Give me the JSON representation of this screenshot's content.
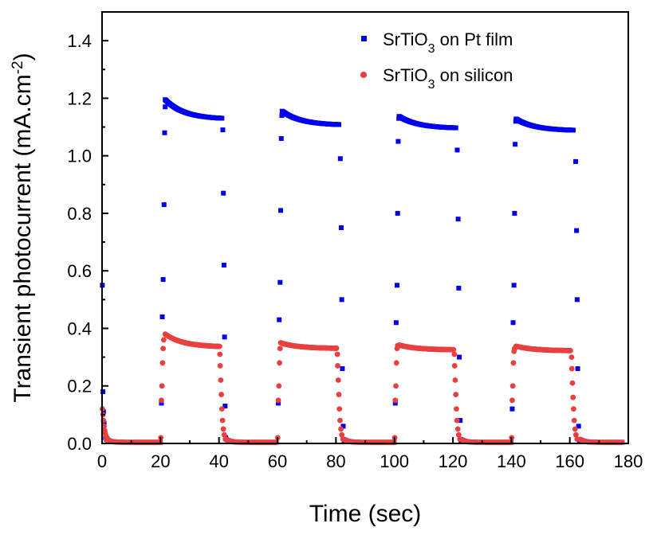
{
  "chart_data": {
    "type": "scatter",
    "xlabel": "Time (sec)",
    "ylabel": {
      "main": "Transient photocurrent (mA.cm",
      "sup": "-2",
      "close": ")"
    },
    "xlim": [
      0,
      180
    ],
    "ylim": [
      0,
      1.5
    ],
    "xticks": [
      "0",
      "20",
      "40",
      "60",
      "80",
      "100",
      "120",
      "140",
      "160",
      "180"
    ],
    "yticks": [
      "0.0",
      "0.2",
      "0.4",
      "0.6",
      "0.8",
      "1.0",
      "1.2",
      "1.4"
    ],
    "legend_position": "top-right",
    "grid": false,
    "series": [
      {
        "name": "SrTiO3 on Pt film",
        "label_parts": {
          "pre": "SrTiO",
          "sub": "3",
          "post": " on Pt film"
        },
        "color": "#0000ee",
        "marker": "square",
        "light_on_peak": [
          1.195,
          1.155,
          1.137,
          1.128
        ],
        "light_on_end": [
          1.127,
          1.106,
          1.095,
          1.087
        ],
        "rise_points": [
          [
            20.3,
            0.14
          ],
          [
            20.6,
            0.44
          ],
          [
            20.9,
            0.57
          ],
          [
            21.2,
            0.83
          ],
          [
            21.4,
            1.08
          ],
          [
            21.6,
            1.17
          ],
          [
            60.3,
            0.14
          ],
          [
            60.6,
            0.43
          ],
          [
            60.9,
            0.56
          ],
          [
            61.1,
            0.81
          ],
          [
            61.3,
            1.06
          ],
          [
            61.5,
            1.14
          ],
          [
            100.3,
            0.14
          ],
          [
            100.6,
            0.42
          ],
          [
            100.9,
            0.55
          ],
          [
            101.1,
            0.8
          ],
          [
            101.3,
            1.05
          ],
          [
            101.5,
            1.13
          ],
          [
            140.3,
            0.12
          ],
          [
            140.6,
            0.42
          ],
          [
            140.9,
            0.55
          ],
          [
            141.1,
            0.8
          ],
          [
            141.3,
            1.04
          ],
          [
            141.5,
            1.12
          ]
        ],
        "fall_points": [
          [
            41.3,
            1.09
          ],
          [
            41.5,
            0.87
          ],
          [
            41.7,
            0.62
          ],
          [
            41.9,
            0.37
          ],
          [
            42.1,
            0.13
          ],
          [
            42.3,
            0.02
          ],
          [
            81.5,
            0.99
          ],
          [
            81.8,
            0.75
          ],
          [
            82.0,
            0.5
          ],
          [
            82.2,
            0.26
          ],
          [
            82.5,
            0.06
          ],
          [
            82.8,
            0.01
          ],
          [
            121.5,
            1.02
          ],
          [
            121.8,
            0.78
          ],
          [
            122.0,
            0.54
          ],
          [
            122.2,
            0.3
          ],
          [
            122.5,
            0.08
          ],
          [
            122.8,
            0.01
          ],
          [
            162.0,
            0.98
          ],
          [
            162.3,
            0.74
          ],
          [
            162.5,
            0.5
          ],
          [
            162.7,
            0.26
          ],
          [
            163.0,
            0.06
          ],
          [
            163.3,
            0.01
          ]
        ],
        "initial_points": [
          [
            0.1,
            0.55
          ],
          [
            0.3,
            0.18
          ],
          [
            0.5,
            0.11
          ],
          [
            0.7,
            0.07
          ],
          [
            0.9,
            0.04
          ],
          [
            1.2,
            0.02
          ]
        ]
      },
      {
        "name": "SrTiO3 on silicon",
        "label_parts": {
          "pre": "SrTiO",
          "sub": "3",
          "post": " on silicon"
        },
        "color": "#e84040",
        "marker": "circle",
        "light_on_peak": [
          0.38,
          0.348,
          0.342,
          0.338
        ],
        "light_on_end": [
          0.335,
          0.33,
          0.325,
          0.322
        ],
        "rise_points": [
          [
            20.1,
            0.02
          ],
          [
            20.3,
            0.15
          ],
          [
            20.5,
            0.2
          ],
          [
            20.7,
            0.28
          ],
          [
            20.9,
            0.33
          ],
          [
            21.1,
            0.36
          ],
          [
            60.1,
            0.02
          ],
          [
            60.3,
            0.15
          ],
          [
            60.5,
            0.2
          ],
          [
            60.7,
            0.28
          ],
          [
            60.9,
            0.33
          ],
          [
            61.1,
            0.35
          ],
          [
            100.1,
            0.02
          ],
          [
            100.3,
            0.15
          ],
          [
            100.5,
            0.2
          ],
          [
            100.7,
            0.28
          ],
          [
            100.9,
            0.33
          ],
          [
            101.1,
            0.34
          ],
          [
            140.1,
            0.02
          ],
          [
            140.3,
            0.15
          ],
          [
            140.5,
            0.2
          ],
          [
            140.7,
            0.28
          ],
          [
            140.9,
            0.32
          ],
          [
            141.1,
            0.33
          ]
        ],
        "fall_points": [
          [
            40.3,
            0.31
          ],
          [
            40.4,
            0.27
          ],
          [
            40.6,
            0.22
          ],
          [
            40.8,
            0.17
          ],
          [
            41.0,
            0.12
          ],
          [
            41.2,
            0.08
          ],
          [
            41.5,
            0.05
          ],
          [
            41.8,
            0.03
          ],
          [
            42.2,
            0.015
          ],
          [
            80.5,
            0.31
          ],
          [
            80.6,
            0.27
          ],
          [
            80.8,
            0.22
          ],
          [
            81.0,
            0.17
          ],
          [
            81.2,
            0.12
          ],
          [
            81.4,
            0.08
          ],
          [
            81.7,
            0.05
          ],
          [
            82.0,
            0.03
          ],
          [
            82.4,
            0.015
          ],
          [
            120.5,
            0.31
          ],
          [
            120.6,
            0.27
          ],
          [
            120.8,
            0.22
          ],
          [
            121.0,
            0.17
          ],
          [
            121.2,
            0.12
          ],
          [
            121.4,
            0.08
          ],
          [
            121.7,
            0.05
          ],
          [
            122.0,
            0.03
          ],
          [
            122.4,
            0.015
          ],
          [
            160.6,
            0.3
          ],
          [
            160.7,
            0.26
          ],
          [
            160.9,
            0.21
          ],
          [
            161.1,
            0.16
          ],
          [
            161.3,
            0.12
          ],
          [
            161.5,
            0.08
          ],
          [
            161.8,
            0.05
          ],
          [
            162.1,
            0.03
          ],
          [
            162.5,
            0.015
          ]
        ],
        "initial_points": [
          [
            0.1,
            0.12
          ],
          [
            0.3,
            0.1
          ],
          [
            0.5,
            0.08
          ],
          [
            0.7,
            0.06
          ],
          [
            0.9,
            0.045
          ],
          [
            1.1,
            0.035
          ],
          [
            1.4,
            0.025
          ],
          [
            1.8,
            0.018
          ],
          [
            2.3,
            0.012
          ]
        ]
      }
    ]
  }
}
